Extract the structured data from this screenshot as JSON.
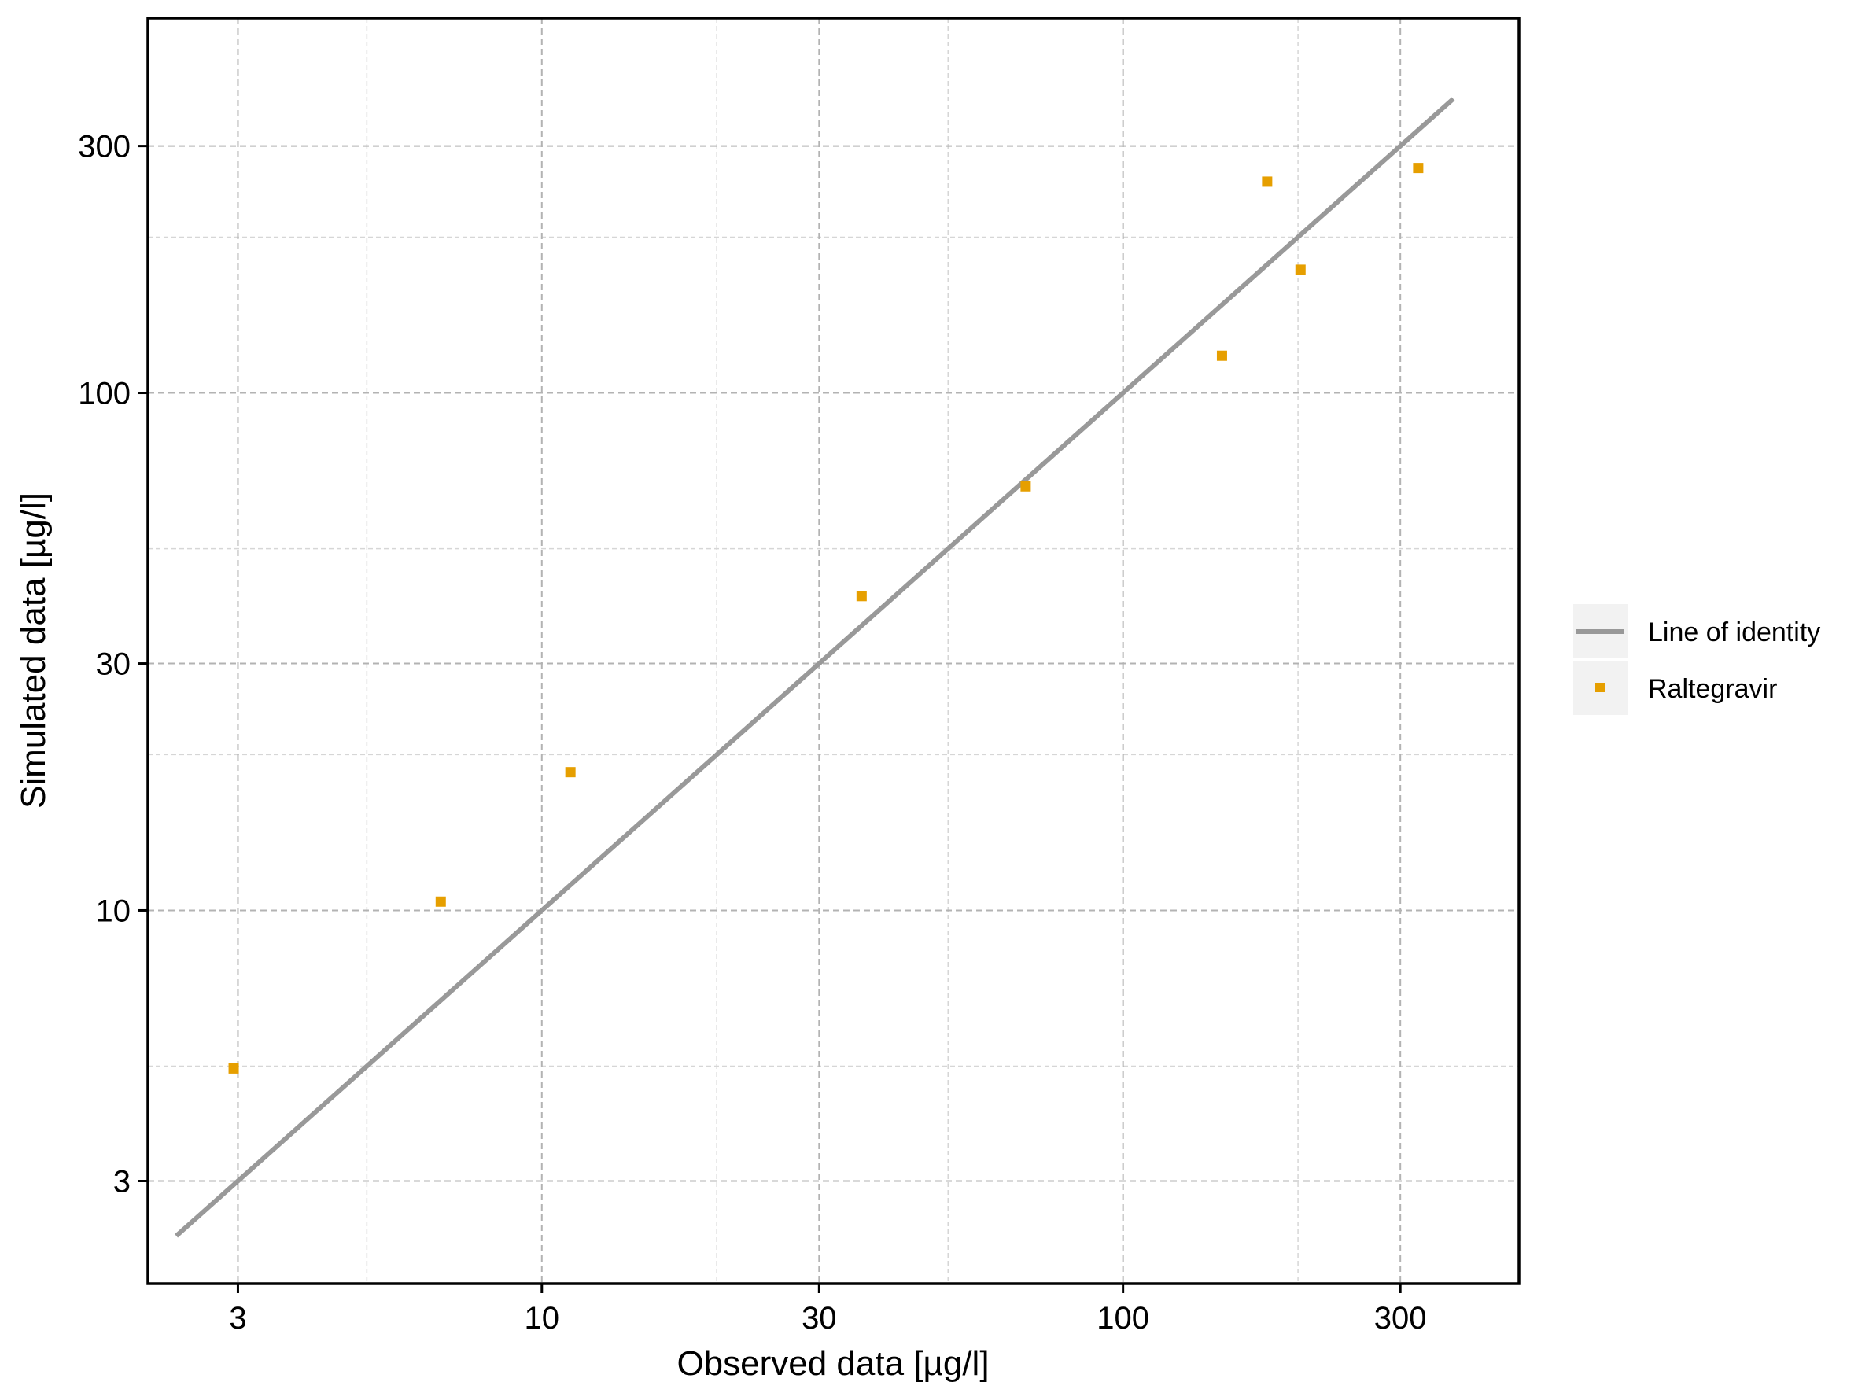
{
  "chart_data": {
    "type": "scatter",
    "xlabel": "Observed data [µg/l]",
    "ylabel": "Simulated data [µg/l]",
    "x_scale": "log",
    "y_scale": "log",
    "xlim": [
      2.1,
      480
    ],
    "ylim": [
      1.9,
      530
    ],
    "x_ticks": [
      {
        "value": 3,
        "label": "3"
      },
      {
        "value": 10,
        "label": "10"
      },
      {
        "value": 30,
        "label": "30"
      },
      {
        "value": 100,
        "label": "100"
      },
      {
        "value": 300,
        "label": "300"
      }
    ],
    "y_ticks": [
      {
        "value": 3,
        "label": "3"
      },
      {
        "value": 10,
        "label": "10"
      },
      {
        "value": 30,
        "label": "30"
      },
      {
        "value": 100,
        "label": "100"
      },
      {
        "value": 300,
        "label": "300"
      }
    ],
    "minor_grid": [
      5,
      20,
      50,
      200
    ],
    "grid": true,
    "legend_position": "right",
    "series": [
      {
        "name": "Line of identity",
        "kind": "line",
        "color": "#999999",
        "x": [
          2.35,
          370
        ],
        "y": [
          2.35,
          370
        ]
      },
      {
        "name": "Raltegravir",
        "kind": "points",
        "color": "#E69F00",
        "x": [
          2.95,
          6.7,
          11.2,
          35.5,
          68,
          148,
          177,
          202,
          322
        ],
        "y": [
          4.95,
          10.4,
          18.5,
          40.5,
          66,
          118,
          256,
          173,
          272
        ]
      }
    ]
  }
}
